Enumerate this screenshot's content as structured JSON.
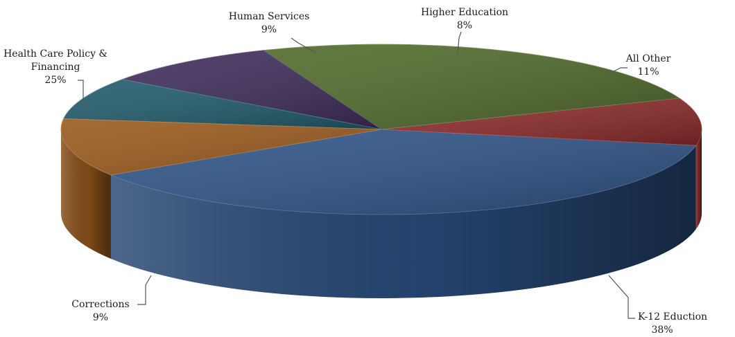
{
  "chart_data": {
    "type": "pie",
    "style": "3d",
    "title": "",
    "slices": [
      {
        "label": "K-12 Eduction",
        "value_label": "38%",
        "value": 38,
        "color": "#2d5286"
      },
      {
        "label": "Corrections",
        "value_label": "9%",
        "value": 9,
        "color": "#8c2a2a"
      },
      {
        "label": "Health Care Policy & Financing",
        "value_label": "25%",
        "value": 25,
        "color": "#4f6a2a"
      },
      {
        "label": "Human Services",
        "value_label": "9%",
        "value": 9,
        "color": "#3e2c5a"
      },
      {
        "label": "Higher Education",
        "value_label": "8%",
        "value": 8,
        "color": "#1f5a6a"
      },
      {
        "label": "All Other",
        "value_label": "11%",
        "value": 11,
        "color": "#9a5a1c"
      }
    ],
    "label_lines": {
      "k12": [
        "K-12 Eduction",
        "38%"
      ],
      "corrections": [
        "Corrections",
        "9%"
      ],
      "hcpf": [
        "Health Care Policy &",
        "Financing",
        "25%"
      ],
      "human": [
        "Human Services",
        "9%"
      ],
      "higher": [
        "Higher Education",
        "8%"
      ],
      "other": [
        "All Other",
        "11%"
      ]
    }
  }
}
